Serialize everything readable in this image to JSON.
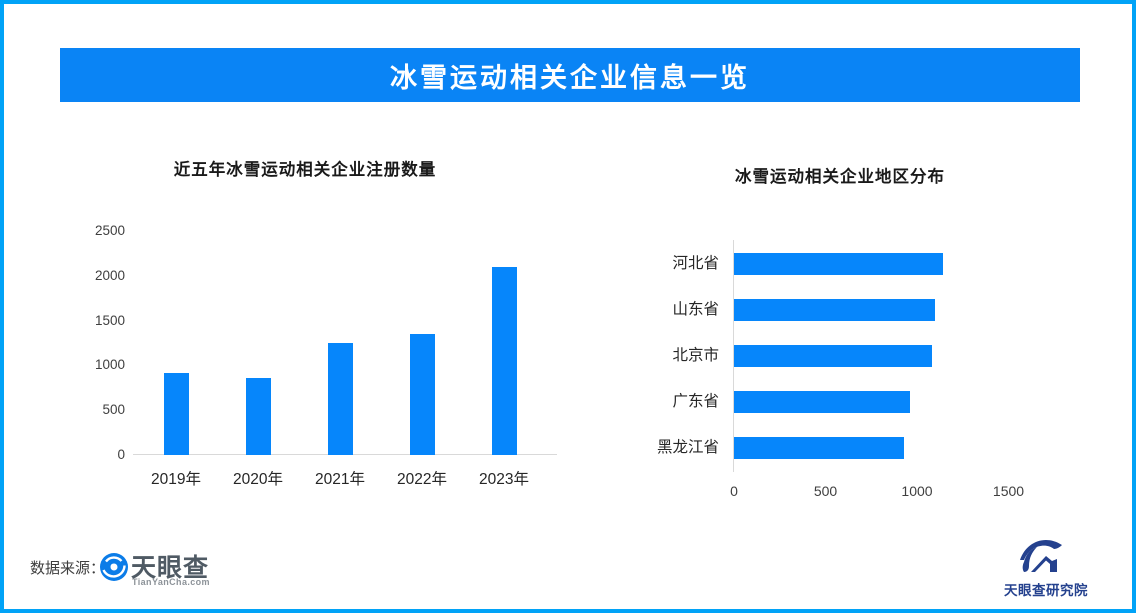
{
  "page": {
    "banner_title": "冰雪运动相关企业信息一览",
    "source_label": "数据来源：",
    "colors": {
      "banner": "#0a84f5",
      "bar": "#0686fb",
      "page_border": "#01a3f7",
      "axis_line": "#d9d9d9",
      "research_navy": "#24418e",
      "tianyancha_blue": "#0b7ce8"
    }
  },
  "logos": {
    "tianyancha": {
      "name": "天眼查",
      "domain": "TianYanCha.com"
    },
    "research": {
      "name": "天眼查研究院"
    }
  },
  "chart_data": [
    {
      "type": "bar",
      "orientation": "vertical",
      "title": "近五年冰雪运动相关企业注册数量",
      "categories": [
        "2019年",
        "2020年",
        "2021年",
        "2022年",
        "2023年"
      ],
      "values": [
        920,
        860,
        1250,
        1350,
        2100
      ],
      "yticks": [
        0,
        500,
        1000,
        1500,
        2000,
        2500
      ],
      "ylim": [
        0,
        2500
      ],
      "xlabel": "",
      "ylabel": "",
      "grid": false,
      "legend": false,
      "bar_color": "#0686fb"
    },
    {
      "type": "bar",
      "orientation": "horizontal",
      "title": "冰雪运动相关企业地区分布",
      "categories": [
        "河北省",
        "山东省",
        "北京市",
        "广东省",
        "黑龙江省"
      ],
      "values": [
        1140,
        1100,
        1080,
        960,
        930
      ],
      "xticks": [
        0,
        500,
        1000,
        1500
      ],
      "xlim": [
        0,
        1640
      ],
      "xlabel": "",
      "ylabel": "",
      "grid": false,
      "legend": false,
      "bar_color": "#0686fb"
    }
  ]
}
